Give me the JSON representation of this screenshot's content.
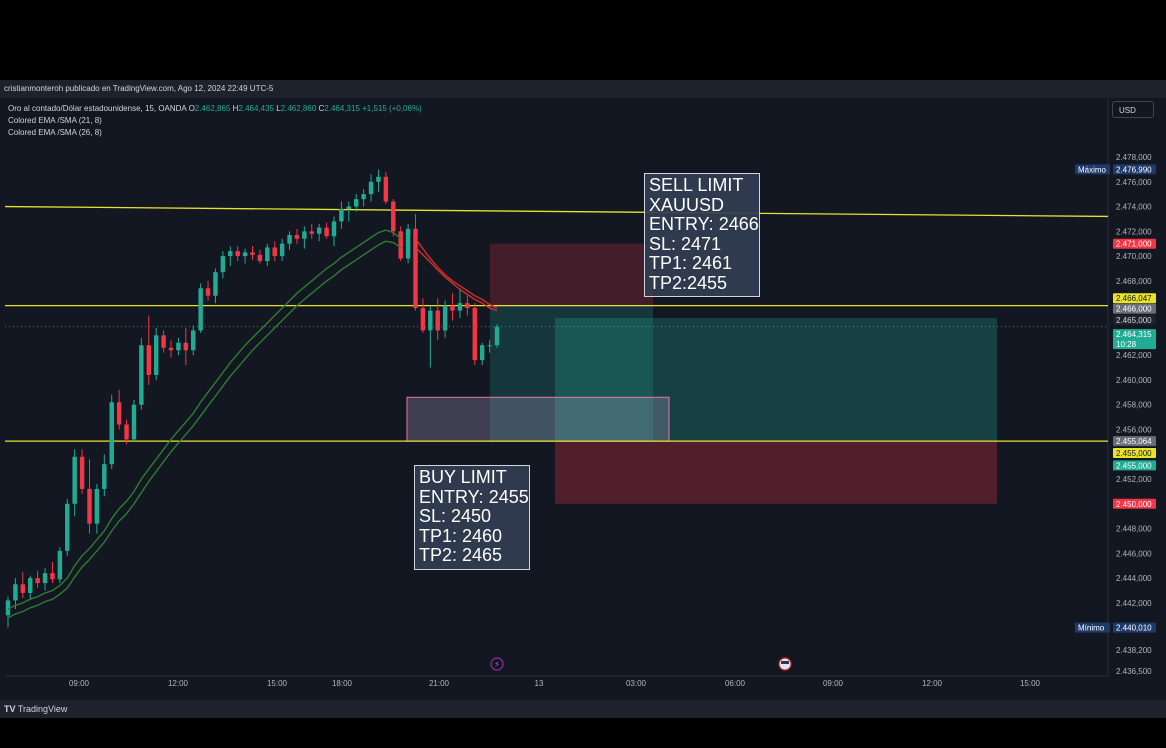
{
  "publisher_line": "cristianmonteroh publicado en TradingView.com, Ago 12, 2024 22:49 UTC-5",
  "legend": {
    "symbol": "Oro al contado/Dólar estadounidense, 15, OANDA",
    "o_label": "O",
    "o_value": "2.462,865",
    "h_label": "H",
    "h_value": "2.464,435",
    "l_label": "L",
    "l_value": "2.462,860",
    "c_label": "C",
    "c_value": "2.464,315",
    "change": "+1,515 (+0,06%)",
    "indicator1": "Colored EMA /SMA (21, 8)",
    "indicator2": "Colored EMA /SMA (26, 8)"
  },
  "currency_button": "USD",
  "sell_note": "SELL LIMIT\nXAUUSD\nENTRY: 2466\nSL: 2471\nTP1: 2461\nTP2:2455",
  "buy_note": "BUY LIMIT\nENTRY: 2455\nSL: 2450\nTP1: 2460\nTP2: 2465",
  "footer_brand": "TradingView",
  "colors": {
    "background": "#131722",
    "up": "#22ab94",
    "down": "#f23645",
    "hline": "#e8e22a",
    "ema_green": "#2e7d32",
    "ema_red": "#d32f2f"
  },
  "chart_data": {
    "type": "candlestick",
    "ylim": [
      2436.5,
      2479.0
    ],
    "y_ticks": [
      "2.478,000",
      "2.476,000",
      "2.474,000",
      "2.472,000",
      "2.470,000",
      "2.468,000",
      "2.462,000",
      "2.460,000",
      "2.458,000",
      "2.456,000",
      "2.452,000",
      "2.448,000",
      "2.446,000",
      "2.444,000",
      "2.442,000",
      "2.438,200",
      "2.436,500"
    ],
    "x_tick_labels": [
      "09:00",
      "12:00",
      "15:00",
      "18:00",
      "21:00",
      "13",
      "03:00",
      "06:00",
      "09:00",
      "12:00",
      "15:00"
    ],
    "price_tags": [
      {
        "label": "Máximo",
        "value": "2.476,990",
        "price": 2477.0,
        "color": "#1e3a6b",
        "text_color": "#ffffff"
      },
      {
        "label": "",
        "value": "2.471,000",
        "price": 2471.0,
        "color": "#f23645",
        "text_color": "#ffffff"
      },
      {
        "label": "",
        "value": "2.466,047",
        "price": 2466.6,
        "color": "#e8e22a",
        "text_color": "#131722"
      },
      {
        "label": "",
        "value": "2.466,000",
        "price": 2465.75,
        "color": "#6a6d78",
        "text_color": "#ffffff"
      },
      {
        "label": "",
        "value": "2.465,000",
        "price": 2464.85,
        "color": "#1e222d",
        "text_color": "#d1d4dc"
      },
      {
        "label": "",
        "value": "2.464,315",
        "price": 2463.7,
        "color": "#22ab94",
        "text_color": "#ffffff",
        "sub": "10:28"
      },
      {
        "label": "",
        "value": "2.455,064",
        "price": 2455.06,
        "color": "#6a6d78",
        "text_color": "#ffffff"
      },
      {
        "label": "",
        "value": "2.455,000",
        "price": 2454.1,
        "color": "#e8e22a",
        "text_color": "#131722"
      },
      {
        "label": "",
        "value": "2.455,000",
        "price": 2453.1,
        "color": "#22ab94",
        "text_color": "#ffffff"
      },
      {
        "label": "",
        "value": "2.450,000",
        "price": 2450.0,
        "color": "#f23645",
        "text_color": "#ffffff"
      },
      {
        "label": "Mínimo",
        "value": "2.440,010",
        "price": 2440.0,
        "color": "#1e3a6b",
        "text_color": "#ffffff"
      }
    ],
    "horizontal_lines": [
      {
        "price_start": 2474.0,
        "price_end": 2473.2
      },
      {
        "price_start": 2466.0,
        "price_end": 2466.0
      },
      {
        "price_start": 2455.06,
        "price_end": 2455.06
      }
    ],
    "zones": [
      {
        "kind": "sell_risk",
        "p_top": 2471.0,
        "p_bottom": 2466.0,
        "x0": 490,
        "x1": 653,
        "color": "rgba(242,54,69,0.22)"
      },
      {
        "kind": "sell_target",
        "p_top": 2466.0,
        "p_bottom": 2455.0,
        "x0": 490,
        "x1": 653,
        "color": "rgba(34,171,148,0.22)"
      },
      {
        "kind": "buy_target",
        "p_top": 2465.0,
        "p_bottom": 2455.0,
        "x0": 555,
        "x1": 997,
        "color": "rgba(34,171,148,0.28)"
      },
      {
        "kind": "buy_risk",
        "p_top": 2455.0,
        "p_bottom": 2450.0,
        "x0": 555,
        "x1": 997,
        "color": "rgba(242,54,69,0.28)"
      },
      {
        "kind": "rect",
        "p_top": 2458.6,
        "p_bottom": 2455.06,
        "x0": 407,
        "x1": 669,
        "color": "rgba(180,160,200,0.28)",
        "stroke": "#e07aa8"
      }
    ],
    "candles": [
      [
        2441.0,
        2442.5,
        2440.0,
        2442.2
      ],
      [
        2442.2,
        2444.0,
        2441.5,
        2443.5
      ],
      [
        2443.5,
        2444.5,
        2442.4,
        2442.8
      ],
      [
        2442.8,
        2444.2,
        2442.3,
        2444.0
      ],
      [
        2444.0,
        2444.6,
        2443.2,
        2443.6
      ],
      [
        2443.6,
        2444.8,
        2443.0,
        2444.4
      ],
      [
        2444.4,
        2445.3,
        2443.6,
        2443.9
      ],
      [
        2443.9,
        2446.5,
        2443.6,
        2446.2
      ],
      [
        2446.2,
        2450.4,
        2445.8,
        2450.0
      ],
      [
        2450.0,
        2454.4,
        2449.0,
        2453.8
      ],
      [
        2453.8,
        2454.4,
        2450.8,
        2451.2
      ],
      [
        2451.2,
        2453.6,
        2447.6,
        2448.4
      ],
      [
        2448.4,
        2451.6,
        2447.6,
        2451.2
      ],
      [
        2451.2,
        2454.0,
        2450.6,
        2453.2
      ],
      [
        2453.2,
        2458.8,
        2452.8,
        2458.2
      ],
      [
        2458.2,
        2459.2,
        2456.0,
        2456.4
      ],
      [
        2456.4,
        2456.8,
        2454.8,
        2455.2
      ],
      [
        2455.2,
        2458.4,
        2455.0,
        2458.0
      ],
      [
        2458.0,
        2463.4,
        2457.6,
        2462.8
      ],
      [
        2462.8,
        2465.2,
        2459.6,
        2460.4
      ],
      [
        2460.4,
        2464.2,
        2460.0,
        2463.6
      ],
      [
        2463.6,
        2464.0,
        2462.2,
        2462.6
      ],
      [
        2462.6,
        2463.2,
        2461.8,
        2462.4
      ],
      [
        2462.4,
        2463.4,
        2462.0,
        2463.0
      ],
      [
        2463.0,
        2464.2,
        2461.2,
        2462.4
      ],
      [
        2462.4,
        2464.4,
        2462.0,
        2464.0
      ],
      [
        2464.0,
        2467.8,
        2463.8,
        2467.4
      ],
      [
        2467.4,
        2468.0,
        2466.4,
        2466.8
      ],
      [
        2466.8,
        2469.0,
        2466.2,
        2468.7
      ],
      [
        2468.7,
        2470.4,
        2468.2,
        2470.0
      ],
      [
        2470.0,
        2470.8,
        2469.2,
        2470.4
      ],
      [
        2470.4,
        2470.8,
        2469.6,
        2470.0
      ],
      [
        2470.0,
        2470.6,
        2469.4,
        2470.3
      ],
      [
        2470.3,
        2470.8,
        2469.7,
        2470.1
      ],
      [
        2470.1,
        2470.5,
        2469.4,
        2469.6
      ],
      [
        2469.6,
        2471.0,
        2469.2,
        2470.7
      ],
      [
        2470.7,
        2471.2,
        2469.6,
        2470.0
      ],
      [
        2470.0,
        2471.4,
        2469.6,
        2471.0
      ],
      [
        2471.0,
        2472.0,
        2470.5,
        2471.7
      ],
      [
        2471.7,
        2472.2,
        2471.0,
        2471.4
      ],
      [
        2471.4,
        2472.4,
        2470.6,
        2472.0
      ],
      [
        2472.0,
        2472.6,
        2471.4,
        2471.8
      ],
      [
        2471.8,
        2472.6,
        2471.2,
        2472.3
      ],
      [
        2472.3,
        2472.7,
        2471.4,
        2471.6
      ],
      [
        2471.6,
        2473.2,
        2470.8,
        2472.8
      ],
      [
        2472.8,
        2474.4,
        2472.2,
        2473.8
      ],
      [
        2473.8,
        2474.4,
        2472.8,
        2474.0
      ],
      [
        2474.0,
        2475.0,
        2473.6,
        2474.6
      ],
      [
        2474.6,
        2475.4,
        2474.0,
        2475.0
      ],
      [
        2475.0,
        2476.6,
        2474.4,
        2476.0
      ],
      [
        2476.0,
        2477.0,
        2475.2,
        2476.4
      ],
      [
        2476.4,
        2476.8,
        2474.2,
        2474.4
      ],
      [
        2474.4,
        2474.6,
        2471.6,
        2472.0
      ],
      [
        2472.0,
        2472.4,
        2469.6,
        2469.8
      ],
      [
        2469.8,
        2472.6,
        2469.4,
        2472.2
      ],
      [
        2472.2,
        2473.4,
        2465.6,
        2465.8
      ],
      [
        2465.8,
        2466.6,
        2463.8,
        2464.0
      ],
      [
        2464.0,
        2466.0,
        2461.0,
        2465.6
      ],
      [
        2465.6,
        2466.6,
        2463.2,
        2464.0
      ],
      [
        2464.0,
        2466.4,
        2463.4,
        2466.0
      ],
      [
        2466.0,
        2467.0,
        2464.8,
        2465.6
      ],
      [
        2465.6,
        2467.4,
        2465.0,
        2466.2
      ],
      [
        2466.2,
        2466.8,
        2465.2,
        2465.8
      ],
      [
        2465.8,
        2466.2,
        2461.2,
        2461.6
      ],
      [
        2461.6,
        2463.0,
        2461.2,
        2462.8
      ],
      [
        2462.8,
        2463.2,
        2462.2,
        2462.8
      ],
      [
        2462.8,
        2464.5,
        2462.6,
        2464.3
      ]
    ],
    "ema_green_a": [
      2441.5,
      2441.8,
      2442.0,
      2442.3,
      2442.5,
      2442.8,
      2443.0,
      2443.4,
      2444.0,
      2445.0,
      2445.8,
      2446.4,
      2447.1,
      2447.8,
      2448.8,
      2449.6,
      2450.2,
      2451.0,
      2452.0,
      2452.8,
      2453.6,
      2454.4,
      2455.2,
      2455.9,
      2456.6,
      2457.3,
      2458.2,
      2459.0,
      2459.8,
      2460.6,
      2461.4,
      2462.1,
      2462.8,
      2463.4,
      2464.0,
      2464.6,
      2465.2,
      2465.8,
      2466.4,
      2467.0,
      2467.5,
      2468.0,
      2468.5,
      2469.0,
      2469.4,
      2469.9,
      2470.3,
      2470.7,
      2471.1,
      2471.5,
      2471.9,
      2472.1,
      2471.9,
      2471.4
    ],
    "ema_green_b": [
      2440.8,
      2441.1,
      2441.3,
      2441.6,
      2441.8,
      2442.1,
      2442.3,
      2442.7,
      2443.2,
      2444.1,
      2444.9,
      2445.5,
      2446.2,
      2446.9,
      2447.8,
      2448.6,
      2449.2,
      2450.0,
      2450.9,
      2451.8,
      2452.6,
      2453.4,
      2454.2,
      2454.9,
      2455.6,
      2456.3,
      2457.1,
      2457.9,
      2458.7,
      2459.5,
      2460.3,
      2461.0,
      2461.7,
      2462.4,
      2463.0,
      2463.6,
      2464.2,
      2464.8,
      2465.4,
      2466.0,
      2466.5,
      2467.0,
      2467.5,
      2468.0,
      2468.4,
      2468.9,
      2469.3,
      2469.7,
      2470.1,
      2470.5,
      2470.9,
      2471.2,
      2471.1,
      2470.7
    ],
    "ema_red_a": [
      2471.4,
      2470.6,
      2469.8,
      2469.1,
      2468.5,
      2468.0,
      2467.6,
      2467.2,
      2466.8,
      2466.5,
      2466.1,
      2465.8
    ],
    "ema_red_b": [
      2470.7,
      2470.1,
      2469.5,
      2468.9,
      2468.3,
      2467.8,
      2467.3,
      2466.9,
      2466.5,
      2466.2,
      2465.8,
      2465.6
    ]
  }
}
